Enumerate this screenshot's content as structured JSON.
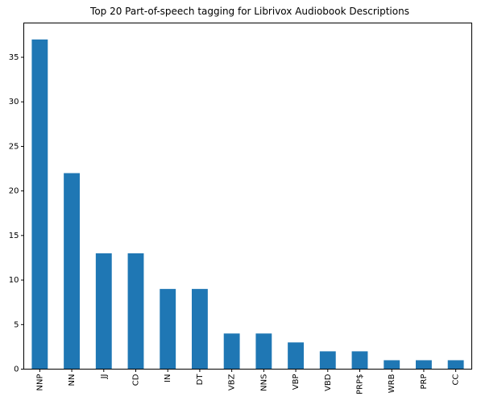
{
  "chart_data": {
    "type": "bar",
    "title": "Top 20 Part-of-speech tagging for Librivox Audiobook Descriptions",
    "xlabel": "",
    "ylabel": "",
    "categories": [
      "NNP",
      "NN",
      "JJ",
      "CD",
      "IN",
      "DT",
      "VBZ",
      "NNS",
      "VBP",
      "VBD",
      "PRP$",
      "WRB",
      "PRP",
      "CC"
    ],
    "values": [
      37,
      22,
      13,
      13,
      9,
      9,
      4,
      4,
      3,
      2,
      2,
      1,
      1,
      1
    ],
    "ylim": [
      0,
      38.85
    ],
    "yticks": [
      0,
      5,
      10,
      15,
      20,
      25,
      30,
      35
    ],
    "grid": false,
    "bar_color": "#1f77b4"
  }
}
